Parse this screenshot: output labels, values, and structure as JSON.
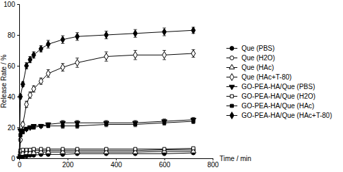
{
  "chart_data": {
    "type": "line",
    "x_label": "Time / min",
    "y_label": "Release Rate / %",
    "x": [
      0,
      5,
      15,
      30,
      45,
      60,
      90,
      120,
      180,
      240,
      360,
      480,
      600,
      720
    ],
    "xlim": [
      0,
      800
    ],
    "xticks": [
      0,
      200,
      400,
      600,
      800
    ],
    "ylim": [
      0,
      100
    ],
    "yticks": [
      0,
      20,
      40,
      60,
      80,
      100
    ],
    "grid": false,
    "legend": "right",
    "color": "#000000",
    "series": [
      {
        "name": "Que (PBS)",
        "marker": "circle",
        "color": "#000000",
        "values": [
          0,
          0.5,
          1,
          1.5,
          2,
          2,
          2.5,
          2.5,
          2.5,
          3,
          3,
          3,
          3,
          3.5
        ],
        "errors": [
          0,
          0.3,
          0.3,
          0.4,
          0.4,
          0.5,
          0.5,
          0.5,
          0.5,
          0.5,
          0.5,
          0.5,
          0.5,
          0.6
        ]
      },
      {
        "name": "Que (H2O)",
        "marker": "circle-open",
        "color": "#000000",
        "values": [
          0,
          4,
          4.5,
          4.5,
          5,
          5,
          5,
          5,
          5,
          5,
          5,
          5,
          5.5,
          5.5
        ],
        "errors": [
          0,
          0.4,
          0.4,
          0.5,
          0.5,
          0.5,
          0.5,
          0.5,
          0.5,
          0.5,
          0.5,
          0.6,
          0.6,
          0.6
        ]
      },
      {
        "name": "Que (HAc)",
        "marker": "triangle-open",
        "color": "#000000",
        "values": [
          0,
          3,
          3,
          3.5,
          3.5,
          3.5,
          4,
          4,
          4,
          4,
          4,
          4,
          4.5,
          4.5
        ],
        "errors": [
          0,
          0.4,
          0.4,
          0.4,
          0.4,
          0.5,
          0.5,
          0.5,
          0.5,
          0.5,
          0.5,
          0.5,
          0.5,
          0.5
        ]
      },
      {
        "name": "Que (HAc+T-80)",
        "marker": "diamond-open",
        "color": "#000000",
        "values": [
          0,
          12,
          22,
          35,
          41,
          45,
          50,
          55,
          59,
          62,
          66,
          67,
          67,
          68
        ],
        "errors": [
          0,
          1,
          1.5,
          2,
          2,
          2,
          2,
          2.5,
          2.5,
          3,
          3,
          3,
          3,
          2.5
        ]
      },
      {
        "name": "GO-PEA-HA/Que (PBS)",
        "marker": "triangle-down",
        "color": "#000000",
        "values": [
          0,
          18,
          18,
          19,
          20,
          21,
          21,
          22,
          23,
          23,
          23,
          23,
          24,
          25
        ],
        "errors": [
          0,
          1,
          1,
          1,
          1,
          1,
          1,
          1,
          1.5,
          1.5,
          1.5,
          1.5,
          1.5,
          1.5
        ]
      },
      {
        "name": "GO-PEA-HA/Que (H2O)",
        "marker": "square-open",
        "color": "#000000",
        "values": [
          0,
          5,
          5.5,
          5.5,
          5.5,
          6,
          6,
          6,
          6,
          6,
          6,
          6,
          6,
          6.5
        ],
        "errors": [
          0,
          0.5,
          0.5,
          0.5,
          0.5,
          0.5,
          0.5,
          0.5,
          0.5,
          0.5,
          0.5,
          0.5,
          0.5,
          0.6
        ]
      },
      {
        "name": "GO-PEA-HA/Que (HAc)",
        "marker": "square",
        "color": "#000000",
        "values": [
          0,
          15,
          17,
          19,
          20,
          20,
          21,
          21,
          21,
          21,
          22,
          22,
          23,
          24
        ],
        "errors": [
          0,
          1,
          1,
          1,
          1,
          1,
          1,
          1,
          1.5,
          1.5,
          1.5,
          1.5,
          1.5,
          1.5
        ]
      },
      {
        "name": "GO-PEA-HA/Que (HAc+T-80)",
        "marker": "diamond",
        "color": "#000000",
        "values": [
          0,
          40,
          48,
          60,
          64,
          67,
          71,
          74,
          77,
          79,
          80,
          81,
          82,
          83
        ],
        "errors": [
          0,
          1.5,
          1.5,
          2,
          2,
          2,
          2,
          2.5,
          2.5,
          2.5,
          2.5,
          2.5,
          2.5,
          2
        ]
      }
    ]
  }
}
